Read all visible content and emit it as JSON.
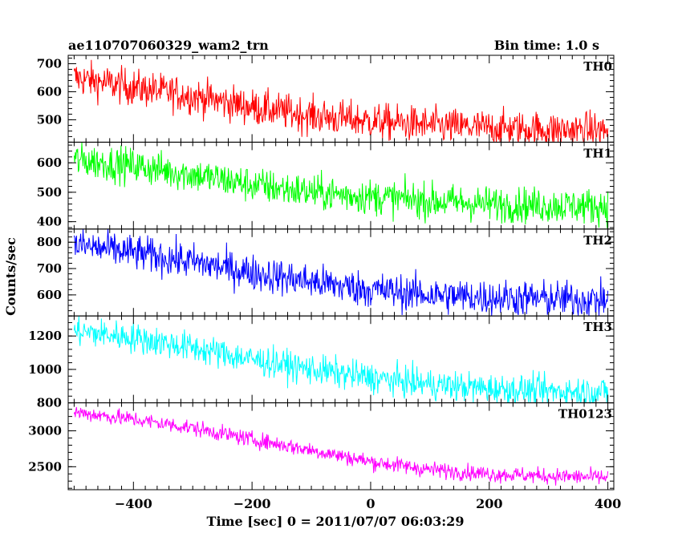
{
  "header": {
    "title": "ae110707060329_wam2_trn",
    "bin_time": "Bin time: 1.0 s"
  },
  "axes": {
    "ylabel": "Counts/sec",
    "xlabel": "Time [sec] 0 = 2011/07/07 06:03:29",
    "x_ticks": [
      "−400",
      "−200",
      "0",
      "200",
      "400"
    ]
  },
  "chart_data": {
    "type": "line",
    "title": "ae110707060329_wam2_trn",
    "xlabel": "Time [sec] 0 = 2011/07/07 06:03:29",
    "ylabel": "Counts/sec",
    "grid": false,
    "x_range": [
      -510,
      410
    ],
    "x_tick_values": [
      -400,
      -200,
      0,
      200,
      400
    ],
    "panels": [
      {
        "name": "TH0",
        "color": "#ff0000",
        "ylim": [
          420,
          730
        ],
        "yticks": [
          500,
          600,
          700
        ],
        "ytick_labels": [
          "500",
          "600",
          "700"
        ],
        "trend": [
          [
            -500,
            650
          ],
          [
            -400,
            615
          ],
          [
            -300,
            585
          ],
          [
            -200,
            545
          ],
          [
            -100,
            515
          ],
          [
            0,
            495
          ],
          [
            100,
            480
          ],
          [
            200,
            470
          ],
          [
            300,
            465
          ],
          [
            400,
            462
          ]
        ],
        "noise": 32
      },
      {
        "name": "TH1",
        "color": "#00ff00",
        "ylim": [
          375,
          670
        ],
        "yticks": [
          400,
          500,
          600
        ],
        "ytick_labels": [
          "400",
          "500",
          "600"
        ],
        "trend": [
          [
            -500,
            610
          ],
          [
            -400,
            590
          ],
          [
            -300,
            560
          ],
          [
            -200,
            525
          ],
          [
            -100,
            500
          ],
          [
            0,
            485
          ],
          [
            100,
            470
          ],
          [
            200,
            460
          ],
          [
            300,
            455
          ],
          [
            400,
            452
          ]
        ],
        "noise": 30
      },
      {
        "name": "TH2",
        "color": "#0000ff",
        "ylim": [
          520,
          850
        ],
        "yticks": [
          600,
          700,
          800
        ],
        "ytick_labels": [
          "600",
          "700",
          "800"
        ],
        "trend": [
          [
            -500,
            790
          ],
          [
            -400,
            760
          ],
          [
            -300,
            725
          ],
          [
            -200,
            685
          ],
          [
            -100,
            650
          ],
          [
            0,
            620
          ],
          [
            100,
            600
          ],
          [
            200,
            590
          ],
          [
            300,
            585
          ],
          [
            400,
            580
          ]
        ],
        "noise": 34
      },
      {
        "name": "TH3",
        "color": "#00ffff",
        "ylim": [
          800,
          1320
        ],
        "yticks": [
          800,
          1000,
          1200
        ],
        "ytick_labels": [
          "800",
          "1000",
          "1200"
        ],
        "trend": [
          [
            -500,
            1230
          ],
          [
            -400,
            1190
          ],
          [
            -300,
            1130
          ],
          [
            -200,
            1060
          ],
          [
            -100,
            1000
          ],
          [
            0,
            950
          ],
          [
            100,
            910
          ],
          [
            200,
            885
          ],
          [
            300,
            870
          ],
          [
            400,
            865
          ]
        ],
        "noise": 45
      },
      {
        "name": "TH0123",
        "color": "#ff00ff",
        "ylim": [
          2180,
          3390
        ],
        "yticks": [
          2500,
          3000
        ],
        "ytick_labels": [
          "2500",
          "3000"
        ],
        "trend": [
          [
            -500,
            3260
          ],
          [
            -400,
            3160
          ],
          [
            -300,
            3040
          ],
          [
            -200,
            2880
          ],
          [
            -100,
            2730
          ],
          [
            0,
            2570
          ],
          [
            100,
            2460
          ],
          [
            200,
            2400
          ],
          [
            300,
            2370
          ],
          [
            400,
            2350
          ]
        ],
        "noise": 55
      }
    ]
  }
}
